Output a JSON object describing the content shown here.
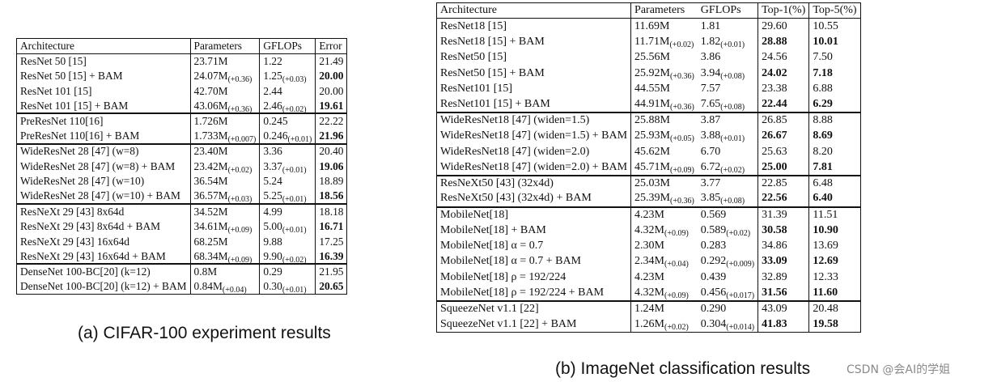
{
  "table_a": {
    "caption": "(a) CIFAR-100 experiment results",
    "headers": [
      "Architecture",
      "Parameters",
      "GFLOPs",
      "Error"
    ],
    "groups": [
      [
        {
          "arch": "ResNet 50 [15]",
          "params": "23.71M",
          "params_delta": "",
          "gflops": "1.22",
          "gflops_delta": "",
          "err": "21.49",
          "bold": false
        },
        {
          "arch": "ResNet 50 [15] + BAM",
          "params": "24.07M",
          "params_delta": "(+0.36)",
          "gflops": "1.25",
          "gflops_delta": "(+0.03)",
          "err": "20.00",
          "bold": true
        },
        {
          "arch": "ResNet 101 [15]",
          "params": "42.70M",
          "params_delta": "",
          "gflops": "2.44",
          "gflops_delta": "",
          "err": "20.00",
          "bold": false
        },
        {
          "arch": "ResNet 101 [15] + BAM",
          "params": "43.06M",
          "params_delta": "(+0.36)",
          "gflops": "2.46",
          "gflops_delta": "(+0.02)",
          "err": "19.61",
          "bold": true
        }
      ],
      [
        {
          "arch": "PreResNet 110[16]",
          "params": "1.726M",
          "params_delta": "",
          "gflops": "0.245",
          "gflops_delta": "",
          "err": "22.22",
          "bold": false
        },
        {
          "arch": "PreResNet 110[16] + BAM",
          "params": "1.733M",
          "params_delta": "(+0.007)",
          "gflops": "0.246",
          "gflops_delta": "(+0.01)",
          "err": "21.96",
          "bold": true
        }
      ],
      [
        {
          "arch": "WideResNet 28 [47] (w=8)",
          "params": "23.40M",
          "params_delta": "",
          "gflops": "3.36",
          "gflops_delta": "",
          "err": "20.40",
          "bold": false
        },
        {
          "arch": "WideResNet 28 [47] (w=8) + BAM",
          "params": "23.42M",
          "params_delta": "(+0.02)",
          "gflops": "3.37",
          "gflops_delta": "(+0.01)",
          "err": "19.06",
          "bold": true
        },
        {
          "arch": "WideResNet 28 [47] (w=10)",
          "params": "36.54M",
          "params_delta": "",
          "gflops": "5.24",
          "gflops_delta": "",
          "err": "18.89",
          "bold": false
        },
        {
          "arch": "WideResNet 28 [47] (w=10) + BAM",
          "params": "36.57M",
          "params_delta": "(+0.03)",
          "gflops": "5.25",
          "gflops_delta": "(+0.01)",
          "err": "18.56",
          "bold": true
        }
      ],
      [
        {
          "arch": "ResNeXt 29 [43] 8x64d",
          "params": "34.52M",
          "params_delta": "",
          "gflops": "4.99",
          "gflops_delta": "",
          "err": "18.18",
          "bold": false
        },
        {
          "arch": "ResNeXt 29 [43] 8x64d + BAM",
          "params": "34.61M",
          "params_delta": "(+0.09)",
          "gflops": "5.00",
          "gflops_delta": "(+0.01)",
          "err": "16.71",
          "bold": true
        },
        {
          "arch": "ResNeXt 29 [43] 16x64d",
          "params": "68.25M",
          "params_delta": "",
          "gflops": "9.88",
          "gflops_delta": "",
          "err": "17.25",
          "bold": false
        },
        {
          "arch": "ResNeXt 29 [43] 16x64d + BAM",
          "params": "68.34M",
          "params_delta": "(+0.09)",
          "gflops": "9.90",
          "gflops_delta": "(+0.02)",
          "err": "16.39",
          "bold": true
        }
      ],
      [
        {
          "arch": "DenseNet 100-BC[20] (k=12)",
          "params": "0.8M",
          "params_delta": "",
          "gflops": "0.29",
          "gflops_delta": "",
          "err": "21.95",
          "bold": false
        },
        {
          "arch": "DenseNet 100-BC[20] (k=12) + BAM",
          "params": "0.84M",
          "params_delta": "(+0.04)",
          "gflops": "0.30",
          "gflops_delta": "(+0.01)",
          "err": "20.65",
          "bold": true
        }
      ]
    ]
  },
  "table_b": {
    "caption": "(b) ImageNet classification results",
    "headers": [
      "Architecture",
      "Parameters",
      "GFLOPs",
      "Top-1(%)",
      "Top-5(%)"
    ],
    "groups": [
      [
        {
          "arch": "ResNet18 [15]",
          "params": "11.69M",
          "params_delta": "",
          "gflops": "1.81",
          "gflops_delta": "",
          "top1": "29.60",
          "top5": "10.55",
          "bold": false
        },
        {
          "arch": "ResNet18 [15] + BAM",
          "params": "11.71M",
          "params_delta": "(+0.02)",
          "gflops": "1.82",
          "gflops_delta": "(+0.01)",
          "top1": "28.88",
          "top5": "10.01",
          "bold": true
        },
        {
          "arch": "ResNet50 [15]",
          "params": "25.56M",
          "params_delta": "",
          "gflops": "3.86",
          "gflops_delta": "",
          "top1": "24.56",
          "top5": "7.50",
          "bold": false
        },
        {
          "arch": "ResNet50 [15] + BAM",
          "params": "25.92M",
          "params_delta": "(+0.36)",
          "gflops": "3.94",
          "gflops_delta": "(+0.08)",
          "top1": "24.02",
          "top5": "7.18",
          "bold": true
        },
        {
          "arch": "ResNet101 [15]",
          "params": "44.55M",
          "params_delta": "",
          "gflops": "7.57",
          "gflops_delta": "",
          "top1": "23.38",
          "top5": "6.88",
          "bold": false
        },
        {
          "arch": "ResNet101 [15] + BAM",
          "params": "44.91M",
          "params_delta": "(+0.36)",
          "gflops": "7.65",
          "gflops_delta": "(+0.08)",
          "top1": "22.44",
          "top5": "6.29",
          "bold": true
        }
      ],
      [
        {
          "arch": "WideResNet18 [47] (widen=1.5)",
          "params": "25.88M",
          "params_delta": "",
          "gflops": "3.87",
          "gflops_delta": "",
          "top1": "26.85",
          "top5": "8.88",
          "bold": false
        },
        {
          "arch": "WideResNet18 [47] (widen=1.5) + BAM",
          "params": "25.93M",
          "params_delta": "(+0.05)",
          "gflops": "3.88",
          "gflops_delta": "(+0.01)",
          "top1": "26.67",
          "top5": "8.69",
          "bold": true
        },
        {
          "arch": "WideResNet18 [47] (widen=2.0)",
          "params": "45.62M",
          "params_delta": "",
          "gflops": "6.70",
          "gflops_delta": "",
          "top1": "25.63",
          "top5": "8.20",
          "bold": false
        },
        {
          "arch": "WideResNet18 [47] (widen=2.0) + BAM",
          "params": "45.71M",
          "params_delta": "(+0.09)",
          "gflops": "6.72",
          "gflops_delta": "(+0.02)",
          "top1": "25.00",
          "top5": "7.81",
          "bold": true
        }
      ],
      [
        {
          "arch": "ResNeXt50 [43] (32x4d)",
          "params": "25.03M",
          "params_delta": "",
          "gflops": "3.77",
          "gflops_delta": "",
          "top1": "22.85",
          "top5": "6.48",
          "bold": false
        },
        {
          "arch": "ResNeXt50 [43] (32x4d) + BAM",
          "params": "25.39M",
          "params_delta": "(+0.36)",
          "gflops": "3.85",
          "gflops_delta": "(+0.08)",
          "top1": "22.56",
          "top5": "6.40",
          "bold": true
        }
      ],
      [
        {
          "arch": "MobileNet[18]",
          "params": "4.23M",
          "params_delta": "",
          "gflops": "0.569",
          "gflops_delta": "",
          "top1": "31.39",
          "top5": "11.51",
          "bold": false
        },
        {
          "arch": "MobileNet[18] + BAM",
          "params": "4.32M",
          "params_delta": "(+0.09)",
          "gflops": "0.589",
          "gflops_delta": "(+0.02)",
          "top1": "30.58",
          "top5": "10.90",
          "bold": true
        },
        {
          "arch": "MobileNet[18] α = 0.7",
          "params": "2.30M",
          "params_delta": "",
          "gflops": "0.283",
          "gflops_delta": "",
          "top1": "34.86",
          "top5": "13.69",
          "bold": false
        },
        {
          "arch": "MobileNet[18] α = 0.7 + BAM",
          "params": "2.34M",
          "params_delta": "(+0.04)",
          "gflops": "0.292",
          "gflops_delta": "(+0.009)",
          "top1": "33.09",
          "top5": "12.69",
          "bold": true
        },
        {
          "arch": "MobileNet[18] ρ = 192/224",
          "params": "4.23M",
          "params_delta": "",
          "gflops": "0.439",
          "gflops_delta": "",
          "top1": "32.89",
          "top5": "12.33",
          "bold": false
        },
        {
          "arch": "MobileNet[18] ρ = 192/224 + BAM",
          "params": "4.32M",
          "params_delta": "(+0.09)",
          "gflops": "0.456",
          "gflops_delta": "(+0.017)",
          "top1": "31.56",
          "top5": "11.60",
          "bold": true
        }
      ],
      [
        {
          "arch": "SqueezeNet v1.1 [22]",
          "params": "1.24M",
          "params_delta": "",
          "gflops": "0.290",
          "gflops_delta": "",
          "top1": "43.09",
          "top5": "20.48",
          "bold": false
        },
        {
          "arch": "SqueezeNet v1.1 [22] + BAM",
          "params": "1.26M",
          "params_delta": "(+0.02)",
          "gflops": "0.304",
          "gflops_delta": "(+0.014)",
          "top1": "41.83",
          "top5": "19.58",
          "bold": true
        }
      ]
    ]
  },
  "watermark": "CSDN @会AI的学姐"
}
